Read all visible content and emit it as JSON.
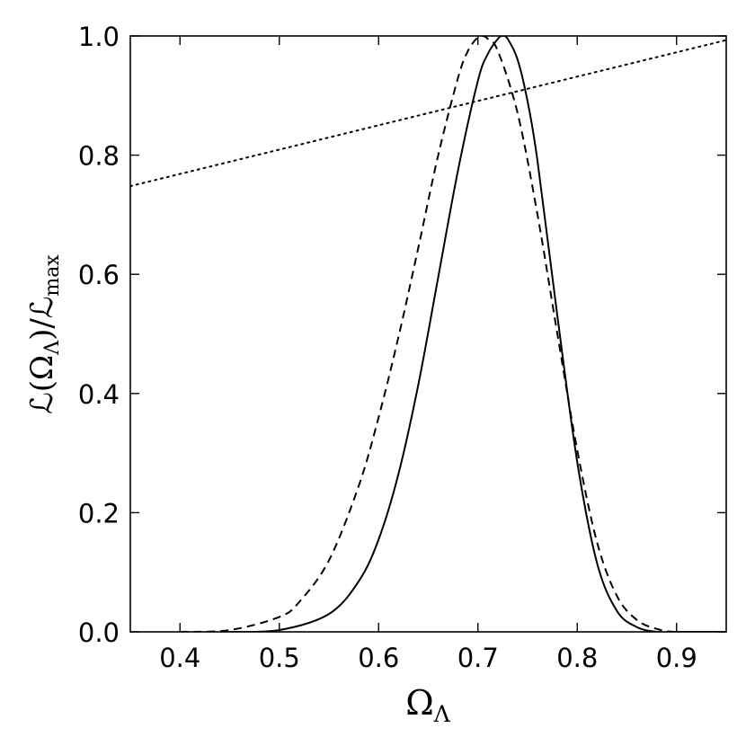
{
  "chart_data": {
    "type": "line",
    "xlabel": "Ω",
    "xlabel_sub": "Λ",
    "ylabel": "ℒ(Ω",
    "ylabel_sub1": "Λ",
    "ylabel_mid": ")/ℒ",
    "ylabel_sub2": "max",
    "xlim": [
      0.35,
      0.95
    ],
    "ylim": [
      0.0,
      1.0
    ],
    "x_ticks": [
      0.4,
      0.5,
      0.6,
      0.7,
      0.8,
      0.9
    ],
    "x_tick_labels": [
      "0.4",
      "0.5",
      "0.6",
      "0.7",
      "0.8",
      "0.9"
    ],
    "y_ticks": [
      0.0,
      0.2,
      0.4,
      0.6,
      0.8,
      1.0
    ],
    "y_tick_labels": [
      "0.0",
      "0.2",
      "0.4",
      "0.6",
      "0.8",
      "1.0"
    ],
    "grid": false,
    "legend": "none",
    "series": [
      {
        "style": "solid",
        "x": [
          0.45,
          0.5,
          0.55,
          0.58,
          0.6,
          0.62,
          0.64,
          0.66,
          0.68,
          0.7,
          0.71,
          0.72,
          0.725,
          0.73,
          0.74,
          0.75,
          0.76,
          0.78,
          0.8,
          0.82,
          0.84,
          0.86,
          0.88,
          0.9,
          0.95
        ],
        "y": [
          0.0,
          0.003,
          0.03,
          0.085,
          0.155,
          0.265,
          0.415,
          0.595,
          0.775,
          0.925,
          0.97,
          0.995,
          1.0,
          0.995,
          0.96,
          0.89,
          0.79,
          0.53,
          0.285,
          0.115,
          0.035,
          0.008,
          0.0,
          0.0,
          0.0
        ]
      },
      {
        "style": "dashed",
        "x": [
          0.4,
          0.45,
          0.5,
          0.52,
          0.55,
          0.58,
          0.6,
          0.62,
          0.64,
          0.66,
          0.68,
          0.69,
          0.7,
          0.705,
          0.71,
          0.72,
          0.74,
          0.76,
          0.78,
          0.8,
          0.82,
          0.84,
          0.86,
          0.88,
          0.9,
          0.95
        ],
        "y": [
          0.0,
          0.003,
          0.025,
          0.05,
          0.12,
          0.245,
          0.36,
          0.495,
          0.645,
          0.8,
          0.93,
          0.975,
          0.998,
          1.0,
          0.995,
          0.975,
          0.87,
          0.7,
          0.5,
          0.305,
          0.15,
          0.06,
          0.02,
          0.005,
          0.0,
          0.0
        ]
      },
      {
        "style": "dotted",
        "x": [
          0.35,
          0.95
        ],
        "y": [
          0.748,
          0.993
        ]
      }
    ]
  }
}
